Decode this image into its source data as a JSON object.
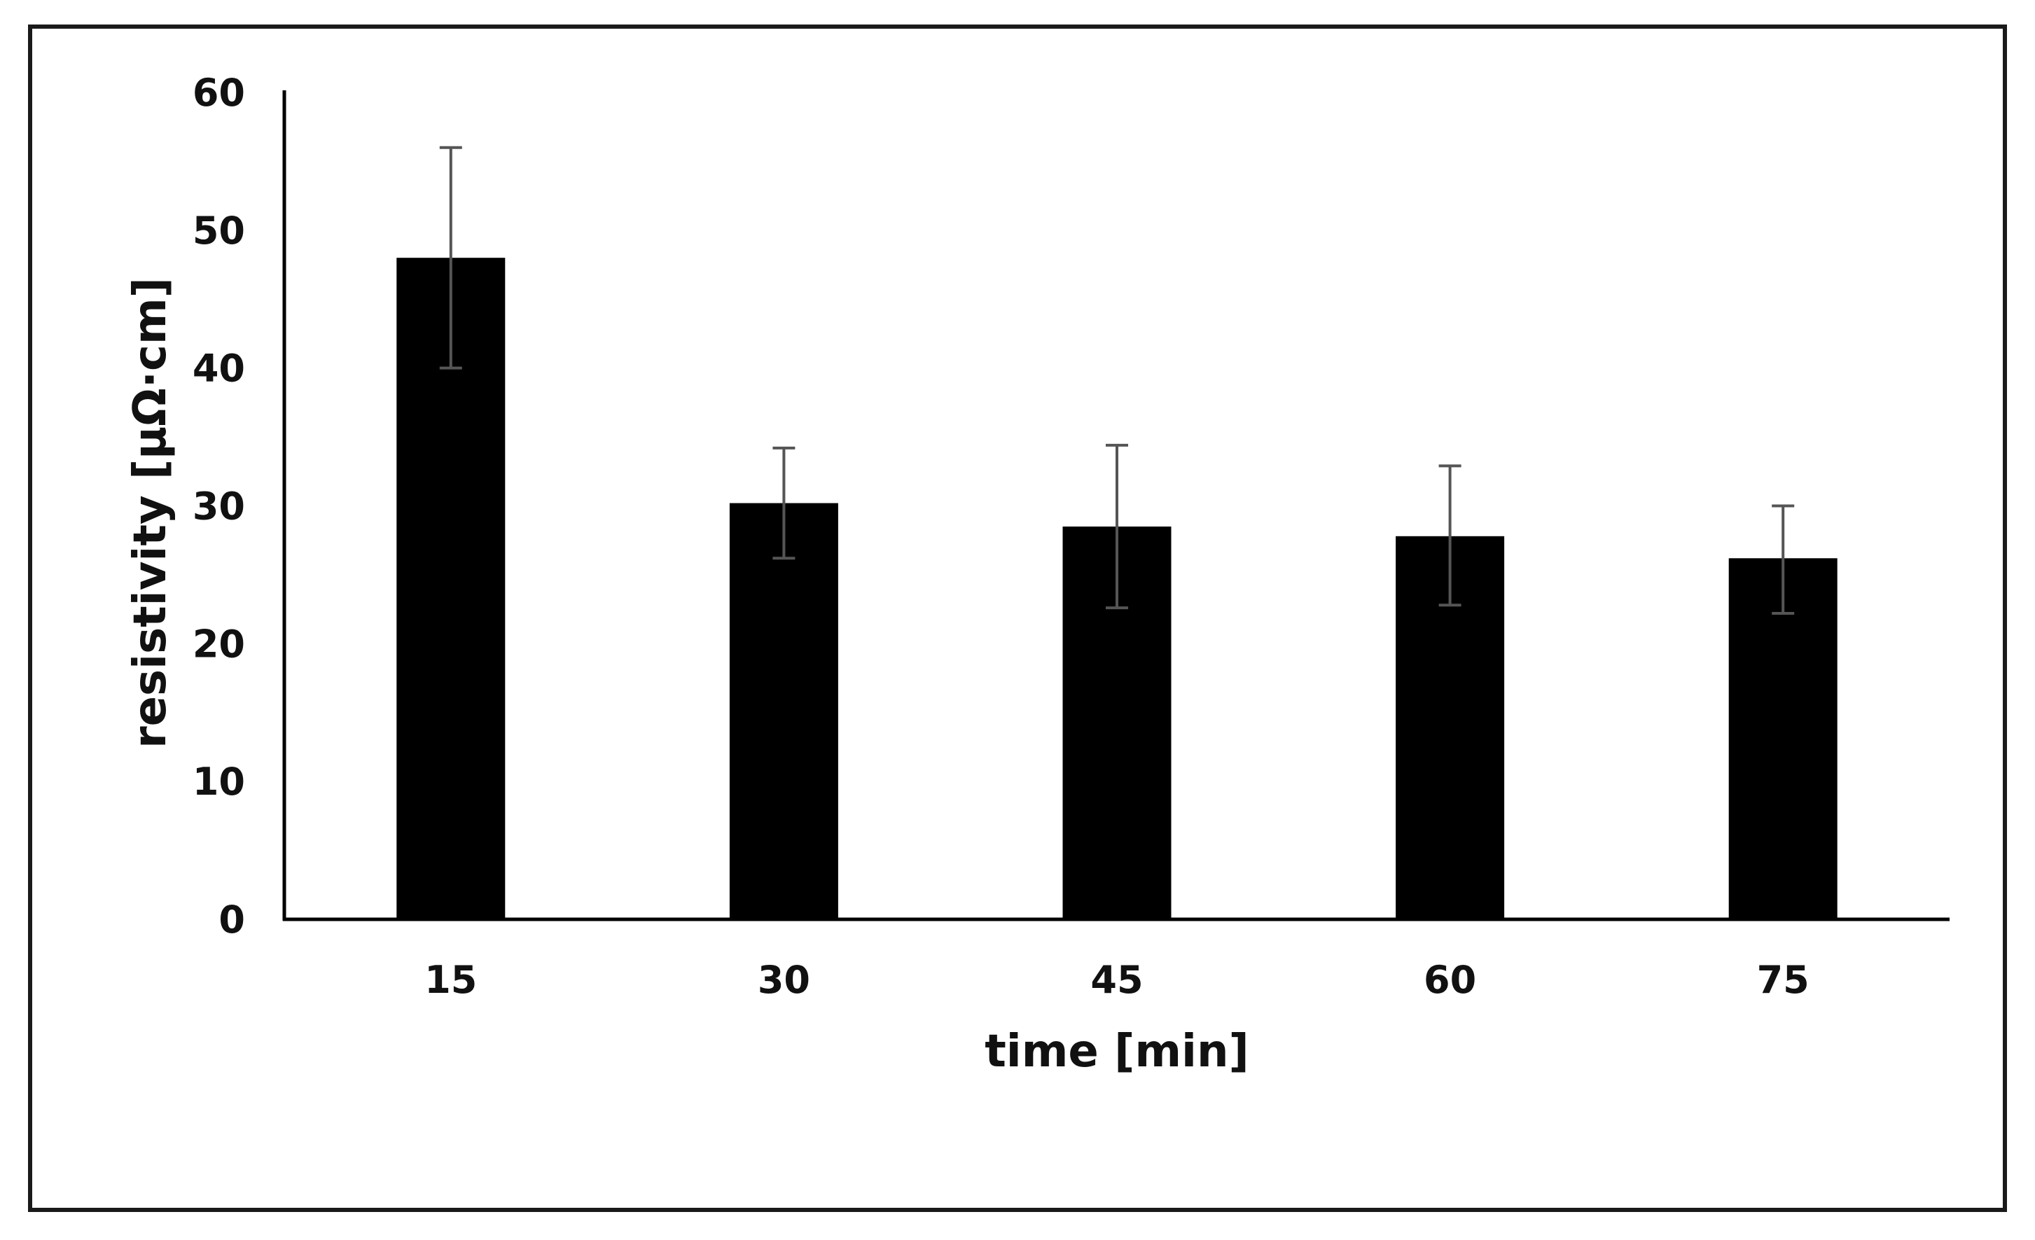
{
  "chart_data": {
    "type": "bar",
    "title": "",
    "xlabel": "time [min]",
    "ylabel": "resistivity [μΩ·cm]",
    "categories": [
      "15",
      "30",
      "45",
      "60",
      "75"
    ],
    "values": [
      48.0,
      30.2,
      28.5,
      27.8,
      26.2
    ],
    "error_low": [
      40.0,
      26.2,
      22.6,
      22.8,
      22.2
    ],
    "error_high": [
      56.0,
      34.2,
      34.4,
      32.9,
      30.0
    ],
    "ylim": [
      0,
      60
    ],
    "yticks": [
      "0",
      "10",
      "20",
      "30",
      "40",
      "50",
      "60"
    ],
    "grid": false,
    "legend": "none",
    "colors": {
      "bar": "#000000",
      "error_bar": "#555555",
      "axis": "#000000",
      "frame": "#1a1a1a"
    }
  }
}
